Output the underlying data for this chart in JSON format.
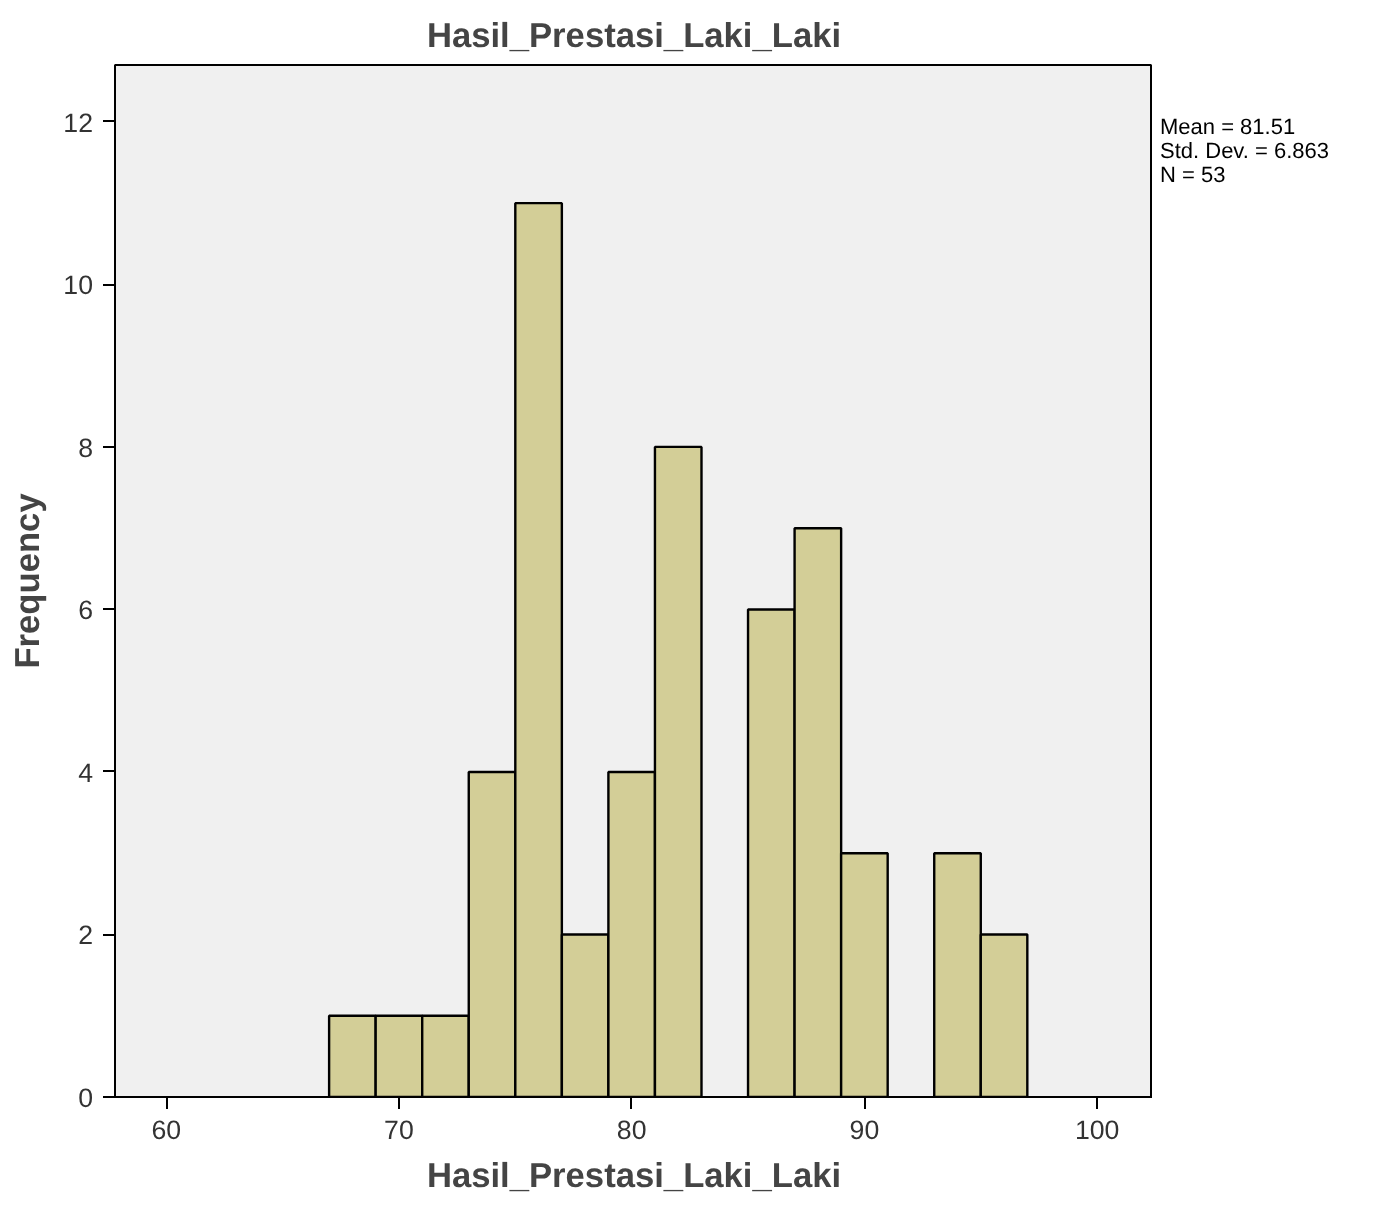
{
  "chart_data": {
    "type": "histogram",
    "title": "Hasil_Prestasi_Laki_Laki",
    "xlabel": "Hasil_Prestasi_Laki_Laki",
    "ylabel": "Frequency",
    "bins": [
      67,
      69,
      71,
      73,
      75,
      77,
      79,
      81,
      83,
      85,
      87,
      89,
      91,
      93,
      95,
      97
    ],
    "values": [
      1,
      1,
      1,
      4,
      11,
      2,
      4,
      8,
      0,
      6,
      7,
      3,
      0,
      3,
      2
    ],
    "color": "#d3ce97",
    "xlim": [
      57.8,
      102.4
    ],
    "xticks": [
      60,
      70,
      80,
      90,
      100
    ],
    "ylim": [
      0,
      12.7
    ],
    "yticks": [
      0,
      2,
      4,
      6,
      8,
      10,
      12
    ],
    "grid": false,
    "annotations": [
      "Mean = 81.51",
      "Std. Dev. = 6.863",
      "N = 53"
    ]
  }
}
